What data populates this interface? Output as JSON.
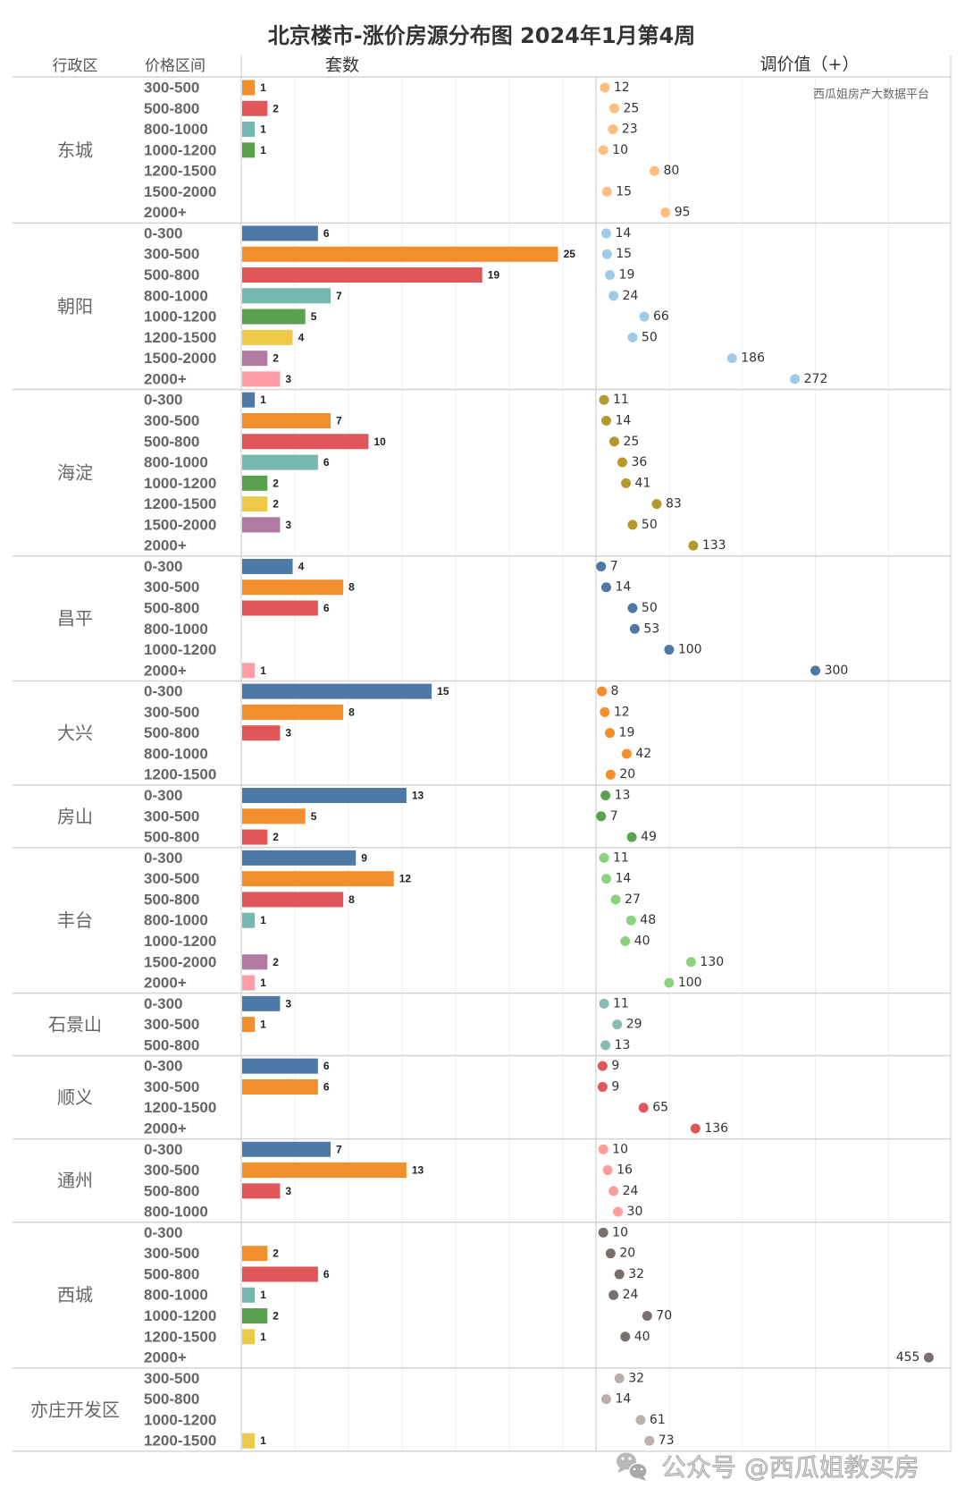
{
  "headers": {
    "district": "行政区",
    "price_range": "价格区间",
    "count": "套数",
    "adjustment": "调价值（+）"
  },
  "watermark": "西瓜姐房产大数据平台",
  "footer": {
    "icon": "wechat-icon",
    "text": "公众号 @西瓜姐教买房"
  },
  "chart_data": {
    "type": "bar",
    "secondary_type": "scatter",
    "title": "北京楼市-涨价房源分布图 2024年1月第4周",
    "row_dimensions": [
      "行政区",
      "价格区间"
    ],
    "count_axis": {
      "label": "套数",
      "xlim": [
        0,
        28
      ]
    },
    "adjustment_axis": {
      "label": "调价值（+）",
      "xlim": [
        0,
        485
      ],
      "gridlines": [
        100,
        200,
        300,
        400
      ]
    },
    "grid": true,
    "price_range_colors": {
      "0-300": "#4e79a7",
      "300-500": "#f28e2b",
      "500-800": "#e15759",
      "800-1000": "#76b7b2",
      "1000-1200": "#59a14f",
      "1200-1500": "#edc948",
      "1500-2000": "#b07aa1",
      "2000+": "#ff9da7"
    },
    "districts": [
      {
        "name": "东城",
        "color": "#ffbe7d",
        "rows": [
          {
            "range": "300-500",
            "count": 1,
            "adjustment": 12
          },
          {
            "range": "500-800",
            "count": 2,
            "adjustment": 25
          },
          {
            "range": "800-1000",
            "count": 1,
            "adjustment": 23
          },
          {
            "range": "1000-1200",
            "count": 1,
            "adjustment": 10
          },
          {
            "range": "1200-1500",
            "count": null,
            "adjustment": 80
          },
          {
            "range": "1500-2000",
            "count": null,
            "adjustment": 15
          },
          {
            "range": "2000+",
            "count": null,
            "adjustment": 95
          }
        ]
      },
      {
        "name": "朝阳",
        "color": "#a0cbe8",
        "rows": [
          {
            "range": "0-300",
            "count": 6,
            "adjustment": 14
          },
          {
            "range": "300-500",
            "count": 25,
            "adjustment": 15
          },
          {
            "range": "500-800",
            "count": 19,
            "adjustment": 19
          },
          {
            "range": "800-1000",
            "count": 7,
            "adjustment": 24
          },
          {
            "range": "1000-1200",
            "count": 5,
            "adjustment": 66
          },
          {
            "range": "1200-1500",
            "count": 4,
            "adjustment": 50
          },
          {
            "range": "1500-2000",
            "count": 2,
            "adjustment": 186
          },
          {
            "range": "2000+",
            "count": 3,
            "adjustment": 272
          }
        ]
      },
      {
        "name": "海淀",
        "color": "#b6992d",
        "rows": [
          {
            "range": "0-300",
            "count": 1,
            "adjustment": 11
          },
          {
            "range": "300-500",
            "count": 7,
            "adjustment": 14
          },
          {
            "range": "500-800",
            "count": 10,
            "adjustment": 25
          },
          {
            "range": "800-1000",
            "count": 6,
            "adjustment": 36
          },
          {
            "range": "1000-1200",
            "count": 2,
            "adjustment": 41
          },
          {
            "range": "1200-1500",
            "count": 2,
            "adjustment": 83
          },
          {
            "range": "1500-2000",
            "count": 3,
            "adjustment": 50
          },
          {
            "range": "2000+",
            "count": null,
            "adjustment": 133
          }
        ]
      },
      {
        "name": "昌平",
        "color": "#4e79a7",
        "rows": [
          {
            "range": "0-300",
            "count": 4,
            "adjustment": 7
          },
          {
            "range": "300-500",
            "count": 8,
            "adjustment": 14
          },
          {
            "range": "500-800",
            "count": 6,
            "adjustment": 50
          },
          {
            "range": "800-1000",
            "count": null,
            "adjustment": 53
          },
          {
            "range": "1000-1200",
            "count": null,
            "adjustment": 100
          },
          {
            "range": "2000+",
            "count": 1,
            "adjustment": 300
          }
        ]
      },
      {
        "name": "大兴",
        "color": "#f28e2b",
        "rows": [
          {
            "range": "0-300",
            "count": 15,
            "adjustment": 8
          },
          {
            "range": "300-500",
            "count": 8,
            "adjustment": 12
          },
          {
            "range": "500-800",
            "count": 3,
            "adjustment": 19
          },
          {
            "range": "800-1000",
            "count": null,
            "adjustment": 42
          },
          {
            "range": "1200-1500",
            "count": null,
            "adjustment": 20
          }
        ]
      },
      {
        "name": "房山",
        "color": "#59a14f",
        "rows": [
          {
            "range": "0-300",
            "count": 13,
            "adjustment": 13
          },
          {
            "range": "300-500",
            "count": 5,
            "adjustment": 7
          },
          {
            "range": "500-800",
            "count": 2,
            "adjustment": 49
          }
        ]
      },
      {
        "name": "丰台",
        "color": "#8cd17d",
        "rows": [
          {
            "range": "0-300",
            "count": 9,
            "adjustment": 11
          },
          {
            "range": "300-500",
            "count": 12,
            "adjustment": 14
          },
          {
            "range": "500-800",
            "count": 8,
            "adjustment": 27
          },
          {
            "range": "800-1000",
            "count": 1,
            "adjustment": 48
          },
          {
            "range": "1000-1200",
            "count": null,
            "adjustment": 40
          },
          {
            "range": "1500-2000",
            "count": 2,
            "adjustment": 130
          },
          {
            "range": "2000+",
            "count": 1,
            "adjustment": 100
          }
        ]
      },
      {
        "name": "石景山",
        "color": "#86bcb6",
        "rows": [
          {
            "range": "0-300",
            "count": 3,
            "adjustment": 11
          },
          {
            "range": "300-500",
            "count": 1,
            "adjustment": 29
          },
          {
            "range": "500-800",
            "count": null,
            "adjustment": 13
          }
        ]
      },
      {
        "name": "顺义",
        "color": "#e15759",
        "rows": [
          {
            "range": "0-300",
            "count": 6,
            "adjustment": 9
          },
          {
            "range": "300-500",
            "count": 6,
            "adjustment": 9
          },
          {
            "range": "1200-1500",
            "count": null,
            "adjustment": 65
          },
          {
            "range": "2000+",
            "count": null,
            "adjustment": 136
          }
        ]
      },
      {
        "name": "通州",
        "color": "#ff9d9a",
        "rows": [
          {
            "range": "0-300",
            "count": 7,
            "adjustment": 10
          },
          {
            "range": "300-500",
            "count": 13,
            "adjustment": 16
          },
          {
            "range": "500-800",
            "count": 3,
            "adjustment": 24
          },
          {
            "range": "800-1000",
            "count": null,
            "adjustment": 30
          }
        ]
      },
      {
        "name": "西城",
        "color": "#79706e",
        "rows": [
          {
            "range": "0-300",
            "count": null,
            "adjustment": 10
          },
          {
            "range": "300-500",
            "count": 2,
            "adjustment": 20
          },
          {
            "range": "500-800",
            "count": 6,
            "adjustment": 32
          },
          {
            "range": "800-1000",
            "count": 1,
            "adjustment": 24
          },
          {
            "range": "1000-1200",
            "count": 2,
            "adjustment": 70
          },
          {
            "range": "1200-1500",
            "count": 1,
            "adjustment": 40
          },
          {
            "range": "2000+",
            "count": null,
            "adjustment": 455
          }
        ]
      },
      {
        "name": "亦庄开发区",
        "color": "#bab0ac",
        "rows": [
          {
            "range": "300-500",
            "count": null,
            "adjustment": 32
          },
          {
            "range": "500-800",
            "count": null,
            "adjustment": 14
          },
          {
            "range": "1000-1200",
            "count": null,
            "adjustment": 61
          },
          {
            "range": "1200-1500",
            "count": 1,
            "adjustment": 73
          }
        ]
      }
    ]
  }
}
